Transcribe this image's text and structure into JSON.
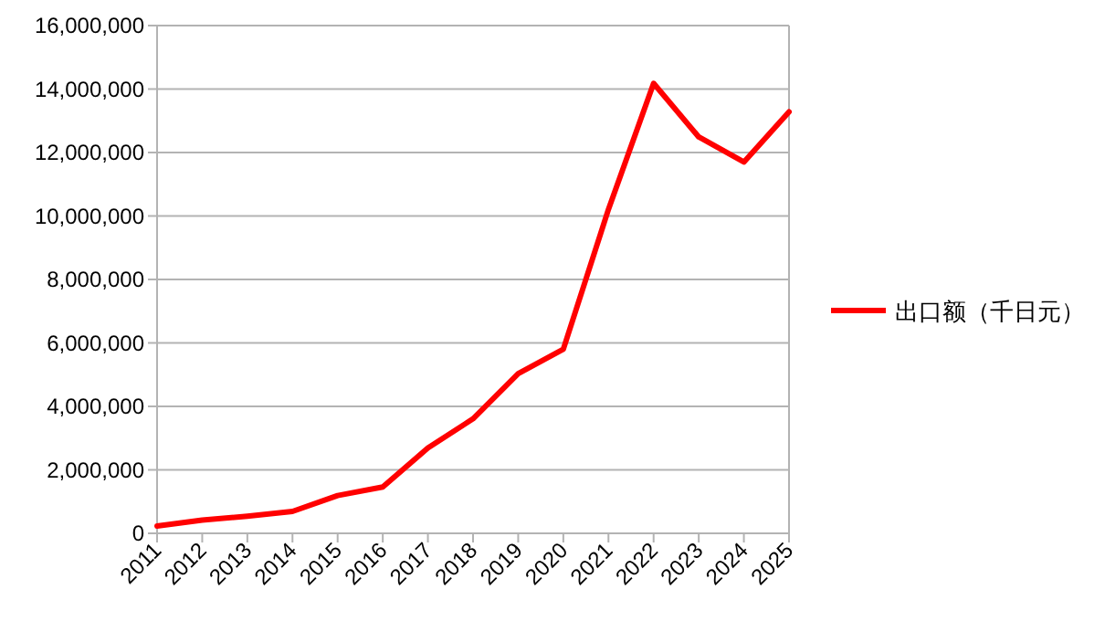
{
  "chart_data": {
    "type": "line",
    "categories": [
      "2011",
      "2012",
      "2013",
      "2014",
      "2015",
      "2016",
      "2017",
      "2018",
      "2019",
      "2020",
      "2021",
      "2022",
      "2023",
      "2024",
      "2025"
    ],
    "series": [
      {
        "name": "出口额（千日元）",
        "color": "#ff0000",
        "values": [
          230000,
          420000,
          540000,
          690000,
          1190000,
          1460000,
          2690000,
          3610000,
          5030000,
          5800000,
          10210000,
          14180000,
          12490000,
          11700000,
          13280000
        ]
      }
    ],
    "ylim": [
      0,
      16000000
    ],
    "yticks": [
      {
        "value": 0,
        "label": "0"
      },
      {
        "value": 2000000,
        "label": "2,000,000"
      },
      {
        "value": 4000000,
        "label": "4,000,000"
      },
      {
        "value": 6000000,
        "label": "6,000,000"
      },
      {
        "value": 8000000,
        "label": "8,000,000"
      },
      {
        "value": 10000000,
        "label": "10,000,000"
      },
      {
        "value": 12000000,
        "label": "12,000,000"
      },
      {
        "value": 14000000,
        "label": "14,000,000"
      },
      {
        "value": 16000000,
        "label": "16,000,000"
      }
    ],
    "grid": "y",
    "legend": "right",
    "line_style": "solid",
    "marker": "none"
  }
}
